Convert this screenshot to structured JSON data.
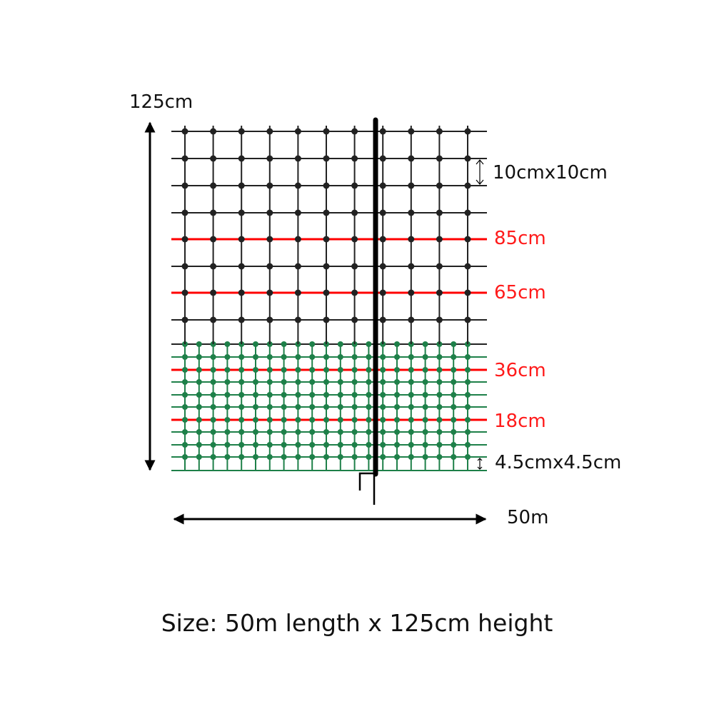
{
  "labels": {
    "height_total": "125cm",
    "upper_mesh": "10cmx10cm",
    "wire_85": "85cm",
    "wire_65": "65cm",
    "wire_36": "36cm",
    "wire_18": "18cm",
    "lower_mesh": "4.5cmx4.5cm",
    "length": "50m"
  },
  "caption": "Size: 50m length x 125cm height",
  "colors": {
    "mesh_upper": "#222222",
    "mesh_lower": "#1e8049",
    "live_wire": "#ff0000",
    "post": "#000000"
  }
}
